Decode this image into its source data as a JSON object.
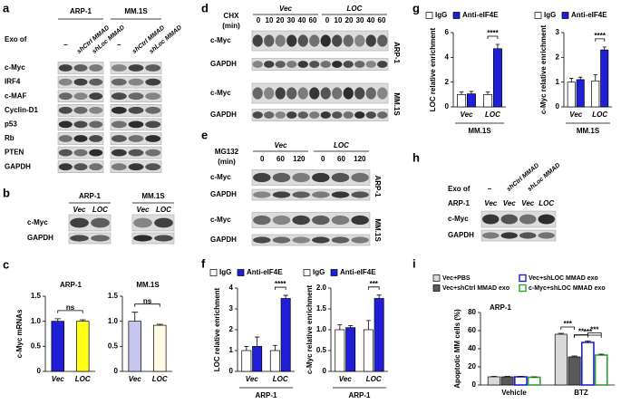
{
  "panel_labels": [
    "a",
    "b",
    "c",
    "d",
    "e",
    "f",
    "g",
    "h",
    "i"
  ],
  "blot_a": {
    "exo_label": "Exo of",
    "groups": [
      {
        "name": "ARP-1",
        "lanes": [
          "–",
          "shCtrl MMAD",
          "shLoc MMAD"
        ]
      },
      {
        "name": "MM.1S",
        "lanes": [
          "–",
          "shCtrl MMAD",
          "shLoc MMAD"
        ]
      }
    ],
    "rows": [
      "c-Myc",
      "IRF4",
      "c-MAF",
      "Cyclin-D1",
      "p53",
      "Rb",
      "PTEN",
      "GAPDH"
    ]
  },
  "blot_b": {
    "groups": [
      {
        "name": "ARP-1",
        "lanes": [
          "Vec",
          "LOC"
        ]
      },
      {
        "name": "MM.1S",
        "lanes": [
          "Vec",
          "LOC"
        ]
      }
    ],
    "rows": [
      "c-Myc",
      "GAPDH"
    ]
  },
  "blot_d": {
    "treatment": [
      "CHX",
      "(min)"
    ],
    "groups": [
      {
        "name": "Vec",
        "lanes": [
          0,
          10,
          20,
          30,
          40,
          60
        ]
      },
      {
        "name": "LOC",
        "lanes": [
          0,
          10,
          20,
          30,
          40,
          60
        ]
      }
    ],
    "cell_lines": [
      {
        "name": "ARP-1",
        "rows": [
          "c-Myc",
          "GAPDH"
        ]
      },
      {
        "name": "MM.1S",
        "rows": [
          "c-Myc",
          "GAPDH"
        ]
      }
    ]
  },
  "blot_e": {
    "treatment": [
      "MG132",
      "(min)"
    ],
    "groups": [
      {
        "name": "Vec",
        "lanes": [
          0,
          60,
          120
        ]
      },
      {
        "name": "LOC",
        "lanes": [
          0,
          60,
          120
        ]
      }
    ],
    "cell_lines": [
      {
        "name": "ARP-1",
        "rows": [
          "c-Myc",
          "GAPDH"
        ]
      },
      {
        "name": "MM.1S",
        "rows": [
          "c-Myc",
          "GAPDH"
        ]
      }
    ]
  },
  "blot_h": {
    "exo_label": "Exo of",
    "exo_lanes": [
      "–",
      "shCtrl MMAD",
      "shLoc MMAD"
    ],
    "cell_line": "ARP-1",
    "lanes": [
      "Vec",
      "Vec",
      "Vec",
      "LOC"
    ],
    "rows": [
      "c-Myc",
      "GAPDH"
    ]
  },
  "chart_data": [
    {
      "type": "bar",
      "title": "ARP-1",
      "y_label": "c-Myc mRNAs",
      "categories": [
        "Vec",
        "LOC"
      ],
      "values": [
        1.0,
        1.0
      ],
      "errors": [
        0.05,
        0.03
      ],
      "colors": [
        "#1f1fd8",
        "#ffff1a"
      ],
      "ylim": [
        0,
        1.5
      ],
      "yticks": [
        0,
        0.5,
        {
          "value": 1,
          "label": "1.0"
        },
        1.5
      ],
      "annotations": [
        "ns"
      ]
    },
    {
      "type": "bar",
      "title": "MM.1S",
      "categories": [
        "Vec",
        "LOC"
      ],
      "values": [
        1.0,
        0.92
      ],
      "errors": [
        0.18,
        0.02
      ],
      "colors": [
        "#c5c5ee",
        "#fffbe0"
      ],
      "ylim": [
        0,
        1.5
      ],
      "yticks": [
        0,
        0.5,
        {
          "value": 1,
          "label": "1.0"
        },
        1.5
      ],
      "annotations": [
        "ns"
      ]
    },
    {
      "type": "bar",
      "x_label": "ARP-1",
      "y_label": "LOC relative enrichment",
      "categories": [
        "Vec",
        "LOC"
      ],
      "series": [
        {
          "name": "IgG",
          "color": "#ffffff",
          "values": [
            1.0,
            1.0
          ],
          "errors": [
            0.2,
            0.25
          ]
        },
        {
          "name": "Anti-eIF4E",
          "color": "#1f1fd8",
          "values": [
            1.2,
            3.5
          ],
          "errors": [
            0.45,
            0.15
          ]
        }
      ],
      "ylim": [
        0,
        4
      ],
      "yticks": [
        0,
        1,
        2,
        3,
        4
      ],
      "annotations": [
        "****"
      ]
    },
    {
      "type": "bar",
      "x_label": "ARP-1",
      "y_label": "c-Myc relative enrichment",
      "categories": [
        "Vec",
        "LOC"
      ],
      "series": [
        {
          "name": "IgG",
          "color": "#ffffff",
          "values": [
            1.0,
            1.0
          ],
          "errors": [
            0.12,
            0.22
          ]
        },
        {
          "name": "Anti-eIF4E",
          "color": "#1f1fd8",
          "values": [
            1.05,
            1.75
          ],
          "errors": [
            0.05,
            0.08
          ]
        }
      ],
      "ylim": [
        0,
        2
      ],
      "yticks": [
        0,
        0.5,
        {
          "value": 1,
          "label": "1.0"
        },
        1.5,
        {
          "value": 2,
          "label": "2.0"
        }
      ],
      "annotations": [
        "***"
      ]
    },
    {
      "type": "bar",
      "x_label": "MM.1S",
      "y_label": "LOC relative enrichment",
      "categories": [
        "Vec",
        "LOC"
      ],
      "series": [
        {
          "name": "IgG",
          "color": "#ffffff",
          "values": [
            1.0,
            1.0
          ],
          "errors": [
            0.2,
            0.2
          ]
        },
        {
          "name": "Anti-eIF4E",
          "color": "#1f1fd8",
          "values": [
            1.05,
            4.7
          ],
          "errors": [
            0.2,
            0.35
          ]
        }
      ],
      "ylim": [
        0,
        6
      ],
      "yticks": [
        0,
        2,
        4,
        6
      ],
      "annotations": [
        "****"
      ]
    },
    {
      "type": "bar",
      "x_label": "MM.1S",
      "y_label": "c-Myc relative enrichment",
      "categories": [
        "Vec",
        "LOC"
      ],
      "series": [
        {
          "name": "IgG",
          "color": "#ffffff",
          "values": [
            1.0,
            1.05
          ],
          "errors": [
            0.15,
            0.25
          ]
        },
        {
          "name": "Anti-eIF4E",
          "color": "#1f1fd8",
          "values": [
            1.1,
            2.3
          ],
          "errors": [
            0.1,
            0.12
          ]
        }
      ],
      "ylim": [
        0,
        3
      ],
      "yticks": [
        0,
        1,
        2,
        3
      ],
      "annotations": [
        "****"
      ]
    },
    {
      "type": "bar",
      "title": "ARP-1",
      "y_label": "Apoptotic MM cells (%)",
      "categories": [
        "Vehicle",
        "BTZ"
      ],
      "series": [
        {
          "name": "Vec+PBS",
          "color": "#d9d9d9",
          "values": [
            9,
            56
          ],
          "errors": [
            0.5,
            1
          ]
        },
        {
          "name": "Vec+shCtrl MMAD exo",
          "color": "#595959",
          "values": [
            9,
            31
          ],
          "errors": [
            0.5,
            1
          ]
        },
        {
          "name": "Vec+shLOC MMAD exo",
          "color": "#1f1fd8",
          "outline": true,
          "values": [
            9,
            47
          ],
          "errors": [
            0.5,
            1.5
          ]
        },
        {
          "name": "c-Myc+shLOC MMAD exo",
          "color": "#2ca02c",
          "outline": true,
          "values": [
            8.5,
            33
          ],
          "errors": [
            0.5,
            1
          ]
        }
      ],
      "ylim": [
        0,
        80
      ],
      "yticks": [
        0,
        20,
        40,
        60,
        80
      ],
      "annotations": [
        "***",
        "**",
        "***",
        "***"
      ]
    }
  ]
}
